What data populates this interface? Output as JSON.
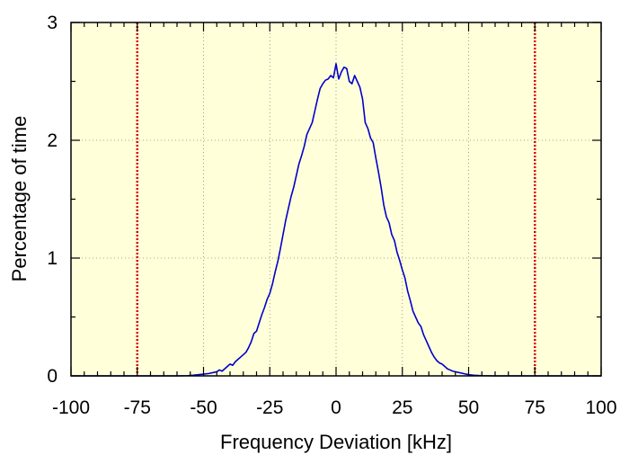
{
  "chart_data": {
    "type": "line",
    "title": "",
    "xlabel": "Frequency Deviation [kHz]",
    "ylabel": "Percentage of time",
    "xlim": [
      -100,
      100
    ],
    "ylim": [
      0,
      3
    ],
    "x_ticks": [
      -100,
      -75,
      -50,
      -25,
      0,
      25,
      50,
      75,
      100
    ],
    "x_tick_labels": [
      "-100",
      "-75",
      "-50",
      "-25",
      "0",
      "25",
      "50",
      "75",
      "100"
    ],
    "y_ticks": [
      0,
      1,
      2,
      3
    ],
    "y_tick_labels": [
      "0",
      "1",
      "2",
      "3"
    ],
    "grid": true,
    "background_color": "#ffffd9",
    "line_color": "#0000cc",
    "reference_line_color": "#dd0000",
    "reference_lines_x": [
      -75,
      75
    ],
    "series": [
      {
        "x": [
          -100,
          -60,
          -56,
          -54,
          -52,
          -50,
          -48,
          -46,
          -45,
          -44,
          -43,
          -42,
          -41,
          -40,
          -39,
          -38,
          -37,
          -36,
          -35,
          -34,
          -33,
          -32,
          -31,
          -30,
          -29,
          -28,
          -27,
          -26,
          -25,
          -24,
          -23,
          -22,
          -21,
          -20,
          -19,
          -18,
          -17,
          -16,
          -15,
          -14,
          -13,
          -12,
          -11,
          -10,
          -9,
          -8,
          -7,
          -6,
          -5,
          -4,
          -3,
          -2,
          -1,
          0,
          1,
          2,
          3,
          4,
          5,
          6,
          7,
          8,
          9,
          10,
          11,
          12,
          13,
          14,
          15,
          16,
          17,
          18,
          19,
          20,
          21,
          22,
          23,
          24,
          25,
          26,
          27,
          28,
          29,
          30,
          31,
          32,
          33,
          34,
          35,
          36,
          37,
          38,
          39,
          40,
          41,
          42,
          43,
          44,
          46,
          48,
          50,
          52,
          55,
          60,
          100
        ],
        "y": [
          0,
          0,
          0.002,
          0.005,
          0.01,
          0.015,
          0.02,
          0.03,
          0.035,
          0.05,
          0.04,
          0.06,
          0.08,
          0.1,
          0.09,
          0.12,
          0.14,
          0.16,
          0.18,
          0.2,
          0.24,
          0.29,
          0.36,
          0.38,
          0.45,
          0.52,
          0.58,
          0.65,
          0.7,
          0.78,
          0.88,
          0.97,
          1.08,
          1.2,
          1.32,
          1.42,
          1.52,
          1.6,
          1.7,
          1.8,
          1.87,
          1.95,
          2.05,
          2.1,
          2.15,
          2.25,
          2.35,
          2.44,
          2.48,
          2.51,
          2.52,
          2.55,
          2.53,
          2.65,
          2.52,
          2.58,
          2.62,
          2.61,
          2.5,
          2.48,
          2.55,
          2.5,
          2.45,
          2.35,
          2.15,
          2.1,
          2.02,
          1.98,
          1.85,
          1.73,
          1.6,
          1.45,
          1.35,
          1.3,
          1.2,
          1.15,
          1.05,
          0.98,
          0.9,
          0.83,
          0.72,
          0.64,
          0.55,
          0.5,
          0.45,
          0.42,
          0.35,
          0.3,
          0.25,
          0.2,
          0.16,
          0.13,
          0.11,
          0.1,
          0.08,
          0.06,
          0.05,
          0.04,
          0.03,
          0.02,
          0.01,
          0.005,
          0.002,
          0,
          0
        ]
      }
    ]
  }
}
